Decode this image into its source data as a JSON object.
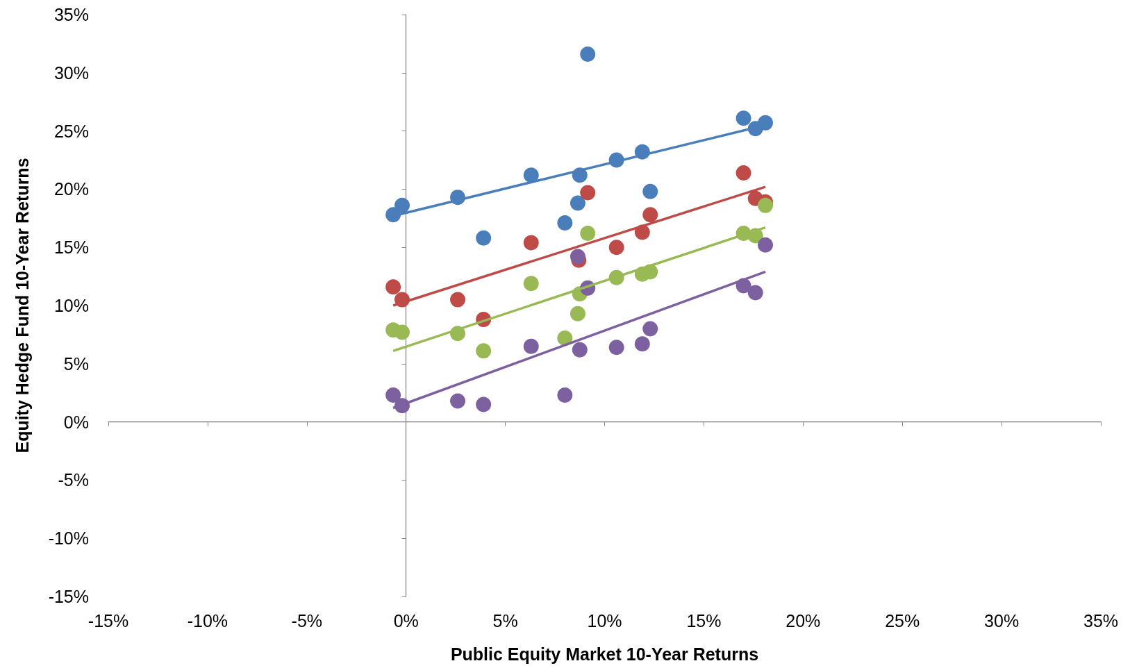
{
  "chart_data": {
    "type": "scatter",
    "xlabel": "Public Equity Market 10-Year Returns",
    "ylabel": "Equity Hedge Fund 10-Year Returns",
    "xlim": [
      -15,
      35
    ],
    "ylim": [
      -15,
      35
    ],
    "xticks": [
      {
        "value": -15,
        "label": "-15%"
      },
      {
        "value": -10,
        "label": "-10%"
      },
      {
        "value": -5,
        "label": "-5%"
      },
      {
        "value": 0,
        "label": "0%"
      },
      {
        "value": 5,
        "label": "5%"
      },
      {
        "value": 10,
        "label": "10%"
      },
      {
        "value": 15,
        "label": "15%"
      },
      {
        "value": 20,
        "label": "20%"
      },
      {
        "value": 25,
        "label": "25%"
      },
      {
        "value": 30,
        "label": "30%"
      },
      {
        "value": 35,
        "label": "35%"
      }
    ],
    "yticks": [
      {
        "value": -15,
        "label": "-15%"
      },
      {
        "value": -10,
        "label": "-10%"
      },
      {
        "value": -5,
        "label": "-5%"
      },
      {
        "value": 0,
        "label": "0%"
      },
      {
        "value": 5,
        "label": "5%"
      },
      {
        "value": 10,
        "label": "10%"
      },
      {
        "value": 15,
        "label": "15%"
      },
      {
        "value": 20,
        "label": "20%"
      },
      {
        "value": 25,
        "label": "25%"
      },
      {
        "value": 30,
        "label": "30%"
      },
      {
        "value": 35,
        "label": "35%"
      }
    ],
    "marker": "circle",
    "series": [
      {
        "color": "#4a7ebb",
        "x": [
          -0.65,
          -0.2,
          2.6,
          3.9,
          6.3,
          8.0,
          8.65,
          8.75,
          9.15,
          10.6,
          11.9,
          12.3,
          17.0,
          17.6,
          18.1
        ],
        "values": [
          17.8,
          18.6,
          19.3,
          15.8,
          21.2,
          17.1,
          18.8,
          21.2,
          31.6,
          22.5,
          23.2,
          19.8,
          26.1,
          25.2,
          25.7
        ]
      },
      {
        "color": "#be4b48",
        "x": [
          -0.65,
          -0.2,
          2.6,
          3.9,
          6.3,
          8.7,
          9.15,
          10.6,
          11.9,
          12.3,
          17.0,
          17.6,
          18.1
        ],
        "values": [
          11.6,
          10.5,
          10.5,
          8.8,
          15.4,
          13.9,
          19.7,
          15.0,
          16.3,
          17.8,
          21.4,
          19.2,
          18.9
        ]
      },
      {
        "color": "#98b954",
        "x": [
          -0.65,
          -0.2,
          2.6,
          3.9,
          6.3,
          8.0,
          8.65,
          8.75,
          9.15,
          10.6,
          11.9,
          12.3,
          17.0,
          17.6,
          18.1
        ],
        "values": [
          7.9,
          7.7,
          7.6,
          6.1,
          11.9,
          7.2,
          9.3,
          11.0,
          16.2,
          12.4,
          12.7,
          12.9,
          16.2,
          16.0,
          18.6
        ]
      },
      {
        "color": "#7d60a0",
        "x": [
          -0.65,
          -0.2,
          2.6,
          3.9,
          6.3,
          8.0,
          8.65,
          8.75,
          9.15,
          10.6,
          11.9,
          12.3,
          17.0,
          17.6,
          18.1
        ],
        "values": [
          2.3,
          1.4,
          1.8,
          1.5,
          6.5,
          2.3,
          14.2,
          6.2,
          11.5,
          6.4,
          6.7,
          8.0,
          11.7,
          11.1,
          15.2
        ]
      },
      {
        "type": "line",
        "marker": "none",
        "color": "#4a7ebb",
        "x": [
          -0.65,
          18.1
        ],
        "values": [
          17.7,
          25.5
        ]
      },
      {
        "type": "line",
        "marker": "none",
        "color": "#be4b48",
        "x": [
          -0.65,
          18.1
        ],
        "values": [
          10.0,
          20.2
        ]
      },
      {
        "type": "line",
        "marker": "none",
        "color": "#98b954",
        "x": [
          -0.65,
          18.1
        ],
        "values": [
          6.1,
          16.7
        ]
      },
      {
        "type": "line",
        "marker": "none",
        "color": "#7d60a0",
        "x": [
          -0.65,
          18.1
        ],
        "values": [
          1.2,
          12.9
        ]
      }
    ]
  }
}
